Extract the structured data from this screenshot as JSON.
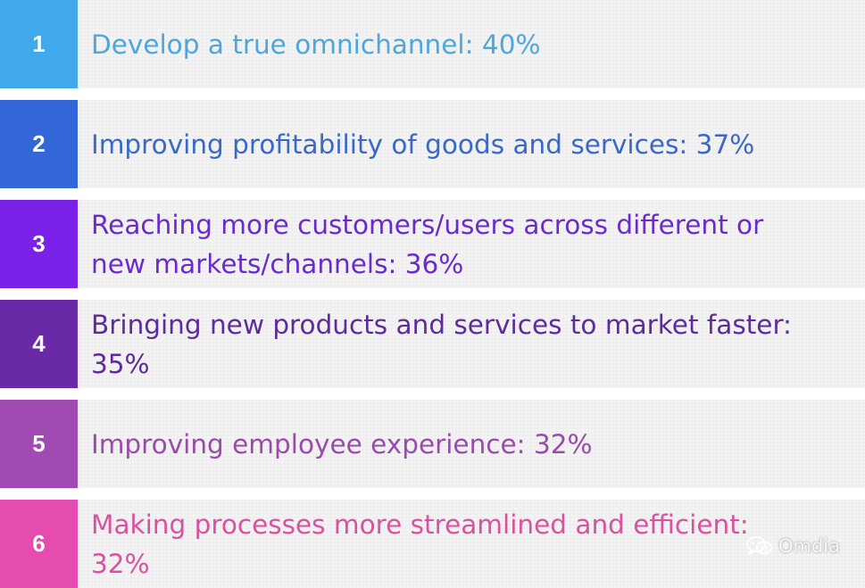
{
  "items": [
    {
      "number": "1",
      "text": "Develop a true omnichannel: 40%",
      "box_color": "#3fa9ec",
      "text_color": "#4ea6dc"
    },
    {
      "number": "2",
      "text": "Improving profitability of goods and services: 37%",
      "box_color": "#3366d6",
      "text_color": "#3a68c9"
    },
    {
      "number": "3",
      "text": "Reaching more customers/users across different or new markets/channels: 36%",
      "box_color": "#7a22e8",
      "text_color": "#6b2bcc"
    },
    {
      "number": "4",
      "text": "Bringing new products and services to market faster: 35%",
      "box_color": "#6a2aa8",
      "text_color": "#5e2a9c"
    },
    {
      "number": "5",
      "text": "Improving employee experience: 32%",
      "box_color": "#a24ab4",
      "text_color": "#9a4aab"
    },
    {
      "number": "6",
      "text": "Making processes more streamlined and efficient: 32%",
      "box_color": "#e64bb0",
      "text_color": "#d9519f"
    }
  ],
  "watermark": {
    "text": "Omdia",
    "icon": "wechat-icon"
  }
}
